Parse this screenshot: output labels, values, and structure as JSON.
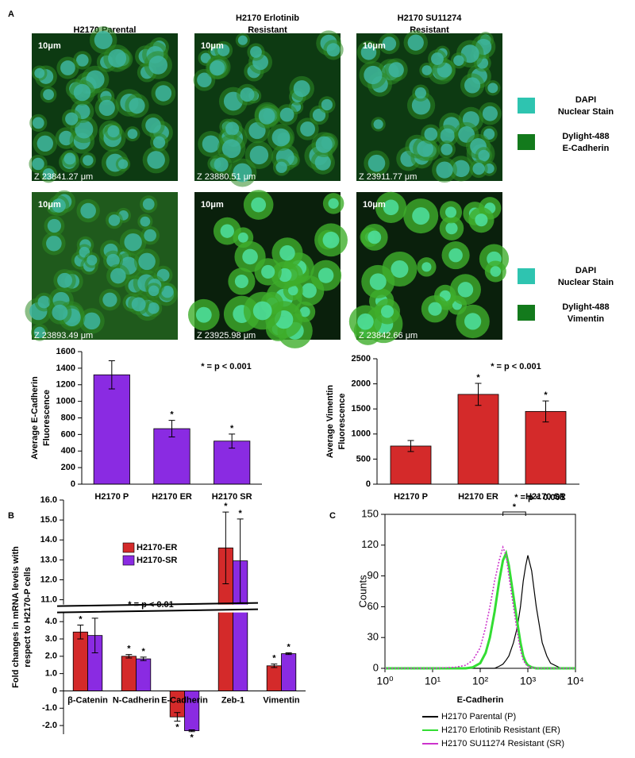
{
  "panels": {
    "labels": [
      "A",
      "B",
      "C"
    ]
  },
  "images": {
    "columns": [
      [
        "H2170 Parental"
      ],
      [
        "H2170 Erlotinib",
        "Resistant"
      ],
      [
        "H2170 SU11274",
        "Resistant"
      ]
    ],
    "scale_label": "10μm",
    "rows": [
      {
        "z_labels": [
          "Z 23841.27 μm",
          "Z 23880.51 μm",
          "Z 23911.77 μm"
        ],
        "legend": [
          {
            "label": [
              "DAPI",
              "Nuclear Stain"
            ],
            "color": "#2ec4b0"
          },
          {
            "label": [
              "Dylight-488",
              "E-Cadherin"
            ],
            "color": "#137a1c"
          }
        ]
      },
      {
        "z_labels": [
          "Z 23893.49 μm",
          "Z 23925.98 μm",
          "Z 23842.66 μm"
        ],
        "legend": [
          {
            "label": [
              "DAPI",
              "Nuclear Stain"
            ],
            "color": "#2ec4b0"
          },
          {
            "label": [
              "Dylight-488",
              "Vimentin"
            ],
            "color": "#137a1c"
          }
        ]
      }
    ]
  },
  "chart_data": [
    {
      "type": "bar",
      "ylabel": [
        "Average E-Cadherin",
        "Fluorescence"
      ],
      "annotation": "* = p < 0.001",
      "categories": [
        "H2170 P",
        "H2170 ER",
        "H2170 SR"
      ],
      "values": [
        1320,
        670,
        520
      ],
      "errors": [
        170,
        100,
        85
      ],
      "significance_marks": [
        null,
        "*",
        "*"
      ],
      "color": "#8a2be2",
      "ylim": [
        0,
        1600
      ],
      "yticks": [
        0,
        200,
        400,
        600,
        800,
        1000,
        1200,
        1400,
        1600
      ]
    },
    {
      "type": "bar",
      "ylabel": [
        "Average Vimentin",
        "Fluorescence"
      ],
      "annotation": "* = p < 0.001",
      "categories": [
        "H2170 P",
        "H2170 ER",
        "H2170 SR"
      ],
      "values": [
        760,
        1790,
        1450
      ],
      "errors": [
        110,
        220,
        210
      ],
      "significance_marks": [
        null,
        "*",
        "*"
      ],
      "color": "#d42a2a",
      "ylim": [
        0,
        2500
      ],
      "yticks": [
        0,
        500,
        1000,
        1500,
        2000,
        2500
      ]
    },
    {
      "type": "bar",
      "ylabel": [
        "Fold changes in mRNA levels with",
        "respect to H2170-P cells"
      ],
      "annotation": "* = p < 0.01",
      "categories": [
        "β-Catenin",
        "N-Cadherin",
        "E-Cadherin",
        "Zeb-1",
        "Vimentin"
      ],
      "series": [
        {
          "name": "H2170-ER",
          "color": "#d42a2a",
          "values": [
            3.4,
            2.0,
            -1.5,
            13.6,
            1.45
          ],
          "errors": [
            0.4,
            0.1,
            0.25,
            1.8,
            0.1
          ],
          "significance_marks": [
            "*",
            "*",
            "*",
            "*",
            "*"
          ]
        },
        {
          "name": "H2170-SR",
          "color": "#8a2be2",
          "values": [
            3.2,
            1.85,
            -2.3,
            12.95,
            2.15
          ],
          "errors": [
            1.0,
            0.1,
            0.05,
            2.1,
            0.05
          ],
          "significance_marks": [
            "*",
            "*",
            "*",
            "*",
            "*"
          ]
        }
      ],
      "legend": "upper-left",
      "ylim": [
        -2.5,
        16
      ],
      "ybreak": [
        4.3,
        10.8
      ],
      "yticks": [
        {
          "value": -2,
          "label": "-2.0"
        },
        {
          "value": -1,
          "label": "-1.0"
        },
        0,
        {
          "value": 1,
          "label": "1.0"
        },
        {
          "value": 2,
          "label": "2.0"
        },
        {
          "value": 3,
          "label": "3.0"
        },
        {
          "value": 4,
          "label": "4.0"
        },
        {
          "value": 11,
          "label": "11.0"
        },
        {
          "value": 12,
          "label": "12.0"
        },
        {
          "value": 13,
          "label": "13.0"
        },
        {
          "value": 14,
          "label": "14.0"
        },
        {
          "value": 15,
          "label": "15.0"
        },
        {
          "value": 16,
          "label": "16.0"
        }
      ]
    },
    {
      "type": "line",
      "xscale": "log",
      "xlabel": "E-Cadherin",
      "ylabel": "Counts",
      "annotation": "* = p < 0.001",
      "bracket_mark": "*",
      "x": [
        1,
        10,
        30,
        50,
        70,
        100,
        130,
        160,
        200,
        250,
        300,
        350,
        400,
        500,
        600,
        700,
        800,
        900,
        1000,
        1200,
        1500,
        2000,
        2500,
        3000,
        5000,
        10000
      ],
      "series": [
        {
          "name": "H2170 Parental (P)",
          "color": "#000000",
          "style": "solid",
          "values": [
            0,
            0,
            0,
            0,
            0,
            0,
            0,
            0,
            0,
            2,
            4,
            8,
            12,
            25,
            40,
            60,
            85,
            100,
            110,
            95,
            60,
            25,
            12,
            5,
            0,
            0
          ]
        },
        {
          "name": "H2170 Erlotinib Resistant (ER)",
          "color": "#33dd33",
          "style": "solid",
          "values": [
            0,
            0,
            0,
            0,
            1,
            5,
            15,
            30,
            55,
            85,
            105,
            112,
            100,
            70,
            45,
            25,
            12,
            6,
            3,
            1,
            0,
            0,
            0,
            0,
            0,
            0
          ]
        },
        {
          "name": "H2170 SU11274 Resistant (SR)",
          "color": "#cc33cc",
          "style": "dotted",
          "values": [
            0,
            0,
            1,
            3,
            8,
            20,
            40,
            60,
            85,
            105,
            118,
            110,
            90,
            60,
            35,
            18,
            8,
            4,
            2,
            1,
            0,
            0,
            0,
            0,
            0,
            0
          ]
        }
      ],
      "xlim": [
        1,
        10000
      ],
      "xticks": [
        {
          "value": 1,
          "label": "10⁰"
        },
        {
          "value": 10,
          "label": "10¹"
        },
        {
          "value": 100,
          "label": "10²"
        },
        {
          "value": 1000,
          "label": "10³"
        },
        {
          "value": 10000,
          "label": "10⁴"
        }
      ],
      "ylim": [
        0,
        150
      ],
      "yticks": [
        0,
        30,
        60,
        90,
        120,
        150
      ]
    }
  ]
}
